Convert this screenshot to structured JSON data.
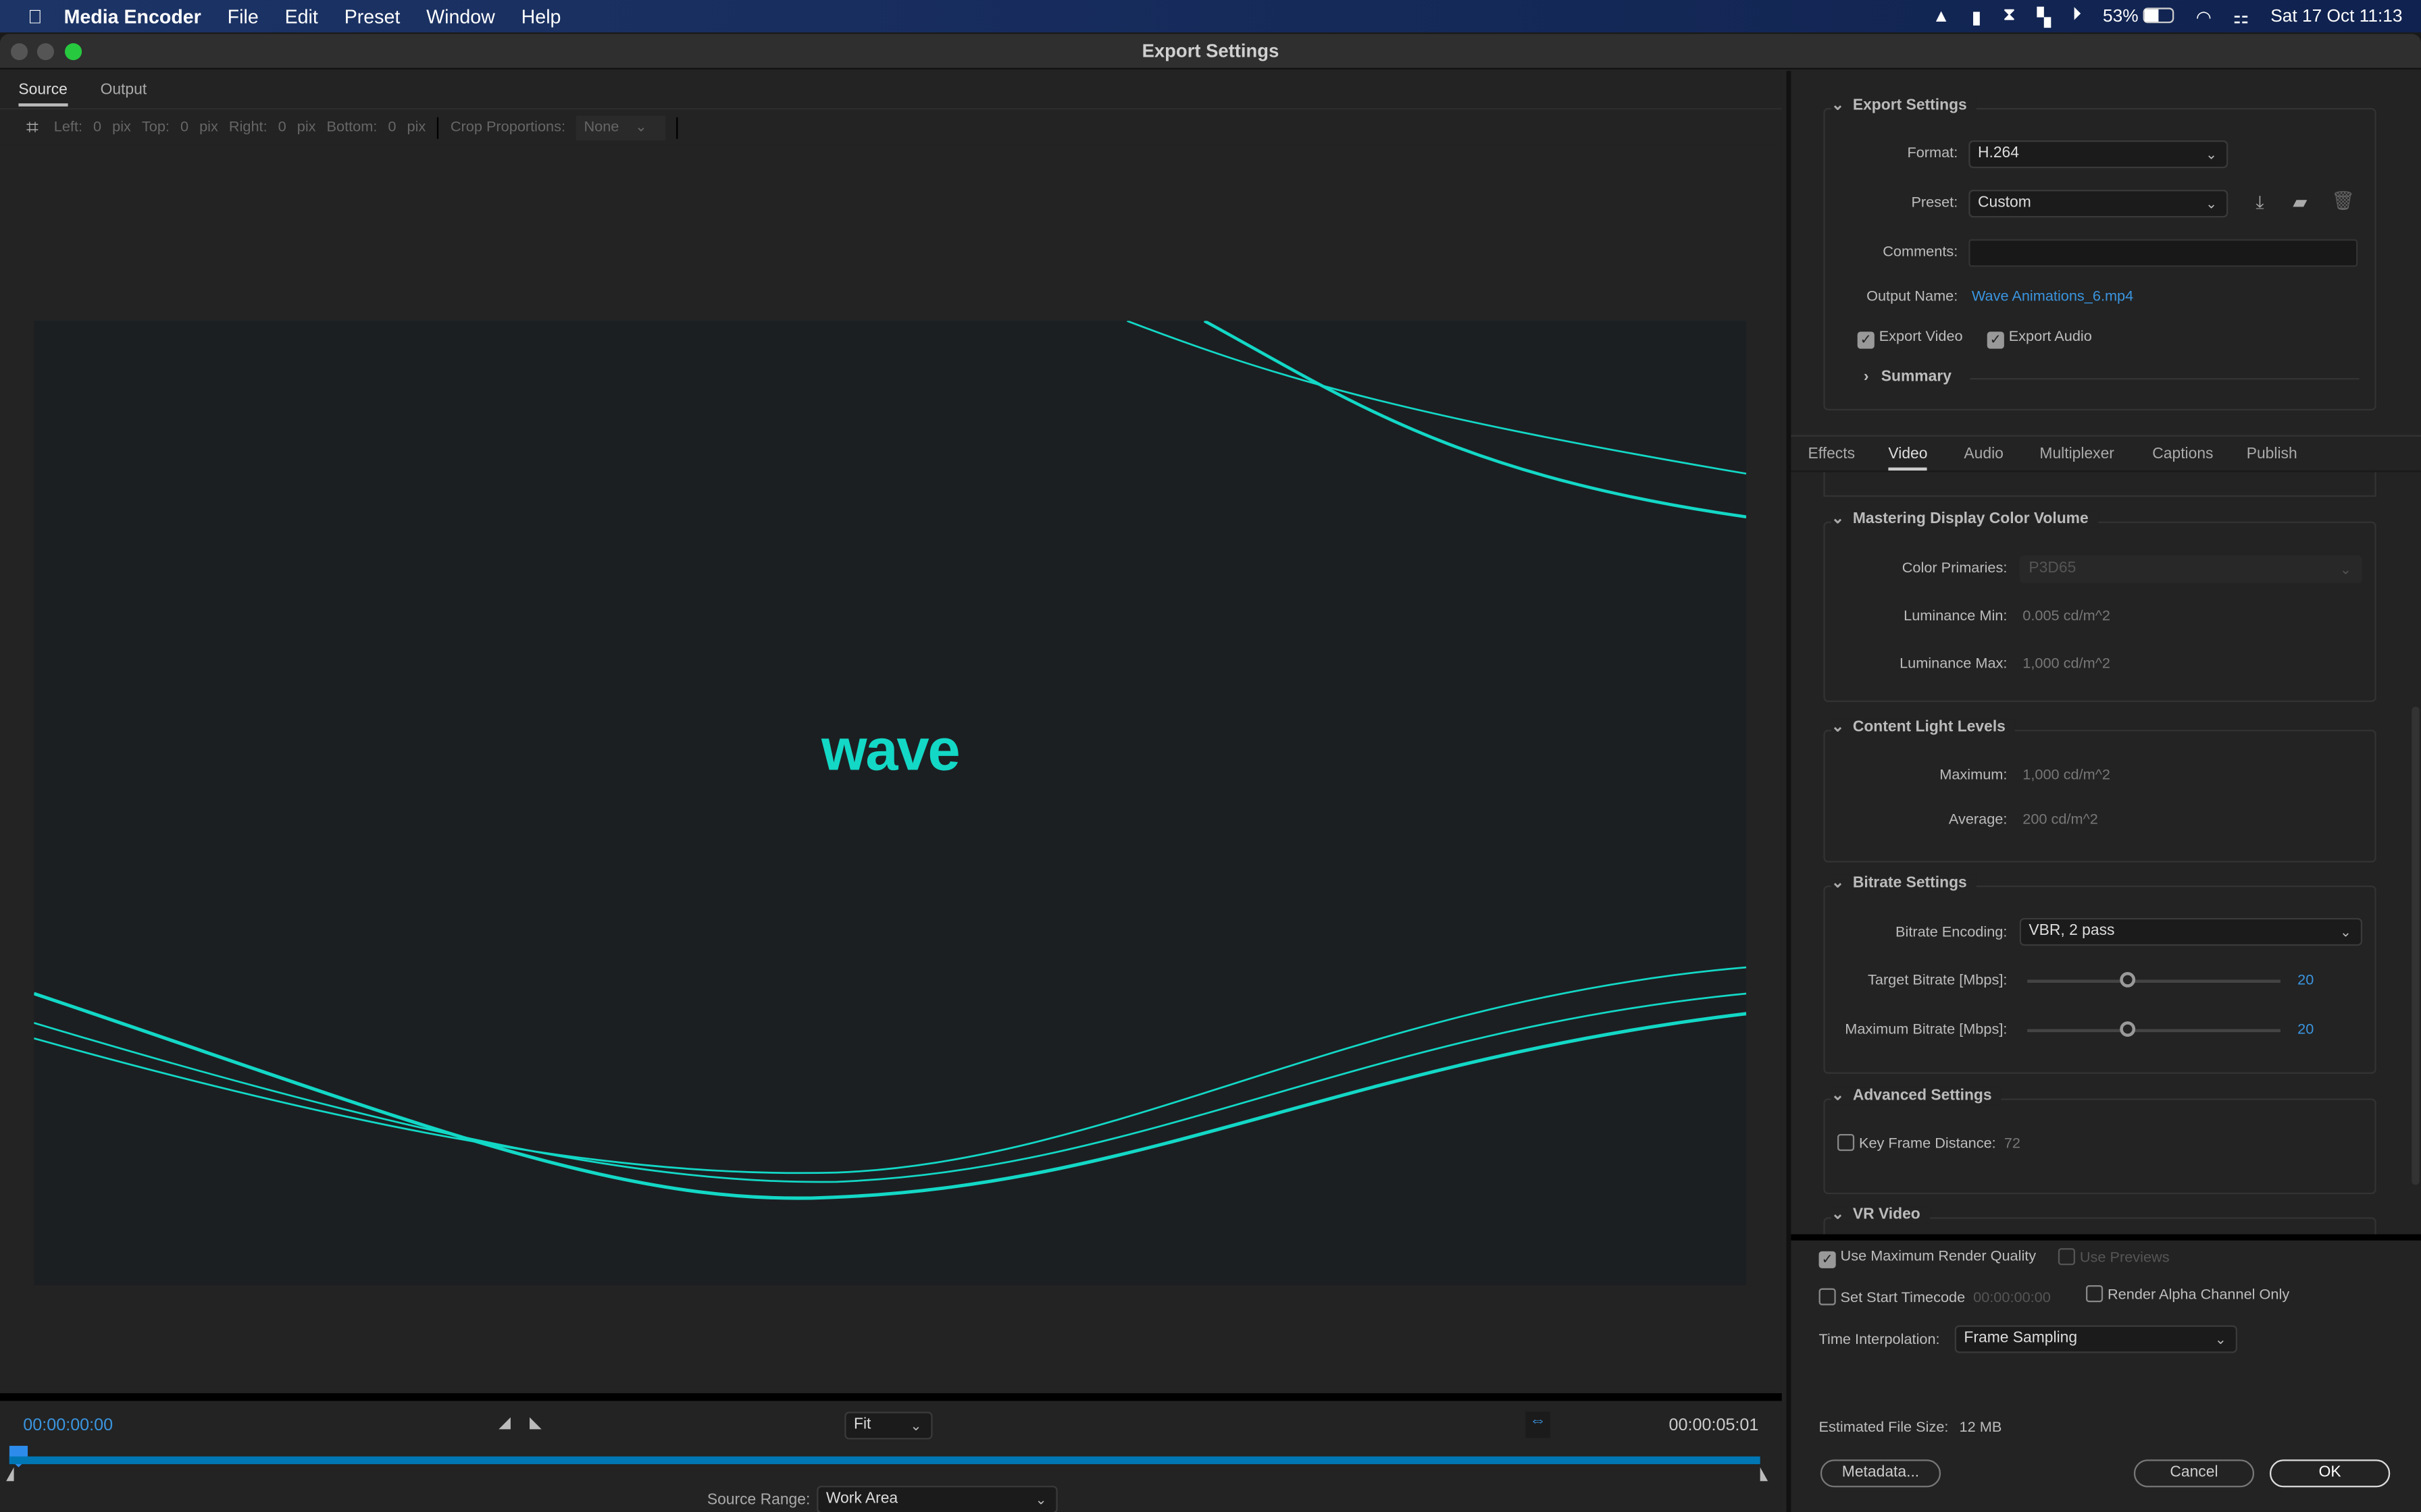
{
  "menubar": {
    "app": "Media Encoder",
    "items": [
      "File",
      "Edit",
      "Preset",
      "Window",
      "Help"
    ],
    "battery": "53%",
    "clock": "Sat 17 Oct  11:13"
  },
  "window": {
    "title": "Export Settings"
  },
  "source_tabs": [
    "Source",
    "Output"
  ],
  "crop": {
    "left_label": "Left:",
    "left": "0",
    "top_label": "Top:",
    "top": "0",
    "right_label": "Right:",
    "right": "0",
    "bottom_label": "Bottom:",
    "bottom": "0",
    "unit": "pix",
    "proportions_label": "Crop Proportions:",
    "proportions": "None"
  },
  "preview": {
    "logo_text": "wave",
    "line_color": "#13d8c6"
  },
  "timeline": {
    "current": "00:00:00:00",
    "duration": "00:00:05:01",
    "zoom": "Fit",
    "source_range_label": "Source Range:",
    "source_range": "Work Area",
    "progress": 0
  },
  "export_settings": {
    "title": "Export Settings",
    "format_label": "Format:",
    "format": "H.264",
    "preset_label": "Preset:",
    "preset": "Custom",
    "comments_label": "Comments:",
    "comments": "",
    "output_label": "Output Name:",
    "output": "Wave Animations_6.mp4",
    "export_video": "Export Video",
    "export_audio": "Export Audio",
    "summary": "Summary"
  },
  "tabs": [
    "Effects",
    "Video",
    "Audio",
    "Multiplexer",
    "Captions",
    "Publish"
  ],
  "mastering": {
    "title": "Mastering Display Color Volume",
    "primaries_label": "Color Primaries:",
    "primaries": "P3D65",
    "lum_min_label": "Luminance Min:",
    "lum_min": "0.005  cd/m^2",
    "lum_max_label": "Luminance Max:",
    "lum_max": "1,000  cd/m^2"
  },
  "content_light": {
    "title": "Content Light Levels",
    "max_label": "Maximum:",
    "max": "1,000  cd/m^2",
    "avg_label": "Average:",
    "avg": "200  cd/m^2"
  },
  "bitrate": {
    "title": "Bitrate Settings",
    "encoding_label": "Bitrate Encoding:",
    "encoding": "VBR, 2 pass",
    "target_label": "Target Bitrate [Mbps]:",
    "target": "20",
    "max_label": "Maximum Bitrate [Mbps]:",
    "max": "20"
  },
  "advanced": {
    "title": "Advanced Settings",
    "keyframe_label": "Key Frame Distance:",
    "keyframe": "72"
  },
  "vr": {
    "title": "VR Video"
  },
  "bottom": {
    "max_quality": "Use Maximum Render Quality",
    "use_previews": "Use Previews",
    "start_tc": "Set Start Timecode",
    "start_tc_value": "00:00:00:00",
    "alpha": "Render Alpha Channel Only",
    "interp_label": "Time Interpolation:",
    "interp": "Frame Sampling",
    "size_label": "Estimated File Size:",
    "size": "12 MB",
    "metadata": "Metadata...",
    "cancel": "Cancel",
    "ok": "OK"
  }
}
